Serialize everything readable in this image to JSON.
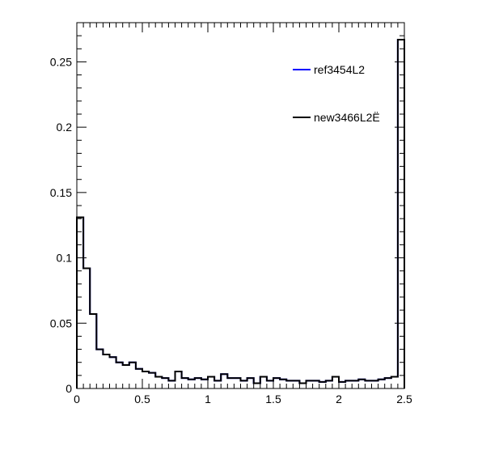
{
  "chart_data": {
    "type": "line",
    "title": "",
    "xlabel": "",
    "ylabel": "",
    "xlim": [
      0,
      2.5
    ],
    "ylim": [
      0,
      0.28
    ],
    "x_ticks": [
      {
        "value": 0,
        "label": "0"
      },
      {
        "value": 0.5,
        "label": "0.5"
      },
      {
        "value": 1,
        "label": "1"
      },
      {
        "value": 1.5,
        "label": "1.5"
      },
      {
        "value": 2,
        "label": "2"
      },
      {
        "value": 2.5,
        "label": "2.5"
      }
    ],
    "y_ticks": [
      {
        "value": 0,
        "label": "0"
      },
      {
        "value": 0.05,
        "label": "0.05"
      },
      {
        "value": 0.1,
        "label": "0.1"
      },
      {
        "value": 0.15,
        "label": "0.15"
      },
      {
        "value": 0.2,
        "label": "0.2"
      },
      {
        "value": 0.25,
        "label": "0.25"
      }
    ],
    "grid": false,
    "legend_position": "top-right",
    "bin_edges_start": 0,
    "bin_width": 0.05,
    "series": [
      {
        "name": "ref3454L2",
        "color": "#0000ff",
        "style": "step",
        "values": [
          0.131,
          0.092,
          0.057,
          0.03,
          0.026,
          0.024,
          0.02,
          0.018,
          0.02,
          0.015,
          0.013,
          0.012,
          0.009,
          0.008,
          0.006,
          0.013,
          0.008,
          0.007,
          0.008,
          0.007,
          0.009,
          0.006,
          0.011,
          0.008,
          0.008,
          0.006,
          0.008,
          0.004,
          0.009,
          0.006,
          0.008,
          0.007,
          0.006,
          0.006,
          0.004,
          0.006,
          0.006,
          0.005,
          0.006,
          0.009,
          0.005,
          0.006,
          0.006,
          0.007,
          0.006,
          0.006,
          0.007,
          0.008,
          0.009,
          0.267
        ]
      },
      {
        "name": "new3466L2Ë",
        "color": "#000000",
        "style": "step",
        "values": [
          0.131,
          0.092,
          0.057,
          0.03,
          0.026,
          0.024,
          0.02,
          0.018,
          0.02,
          0.015,
          0.013,
          0.012,
          0.009,
          0.008,
          0.006,
          0.013,
          0.008,
          0.007,
          0.008,
          0.007,
          0.009,
          0.006,
          0.011,
          0.008,
          0.008,
          0.006,
          0.008,
          0.004,
          0.009,
          0.006,
          0.008,
          0.007,
          0.006,
          0.006,
          0.004,
          0.006,
          0.006,
          0.005,
          0.006,
          0.009,
          0.005,
          0.006,
          0.006,
          0.007,
          0.006,
          0.006,
          0.007,
          0.008,
          0.009,
          0.267
        ]
      }
    ]
  }
}
